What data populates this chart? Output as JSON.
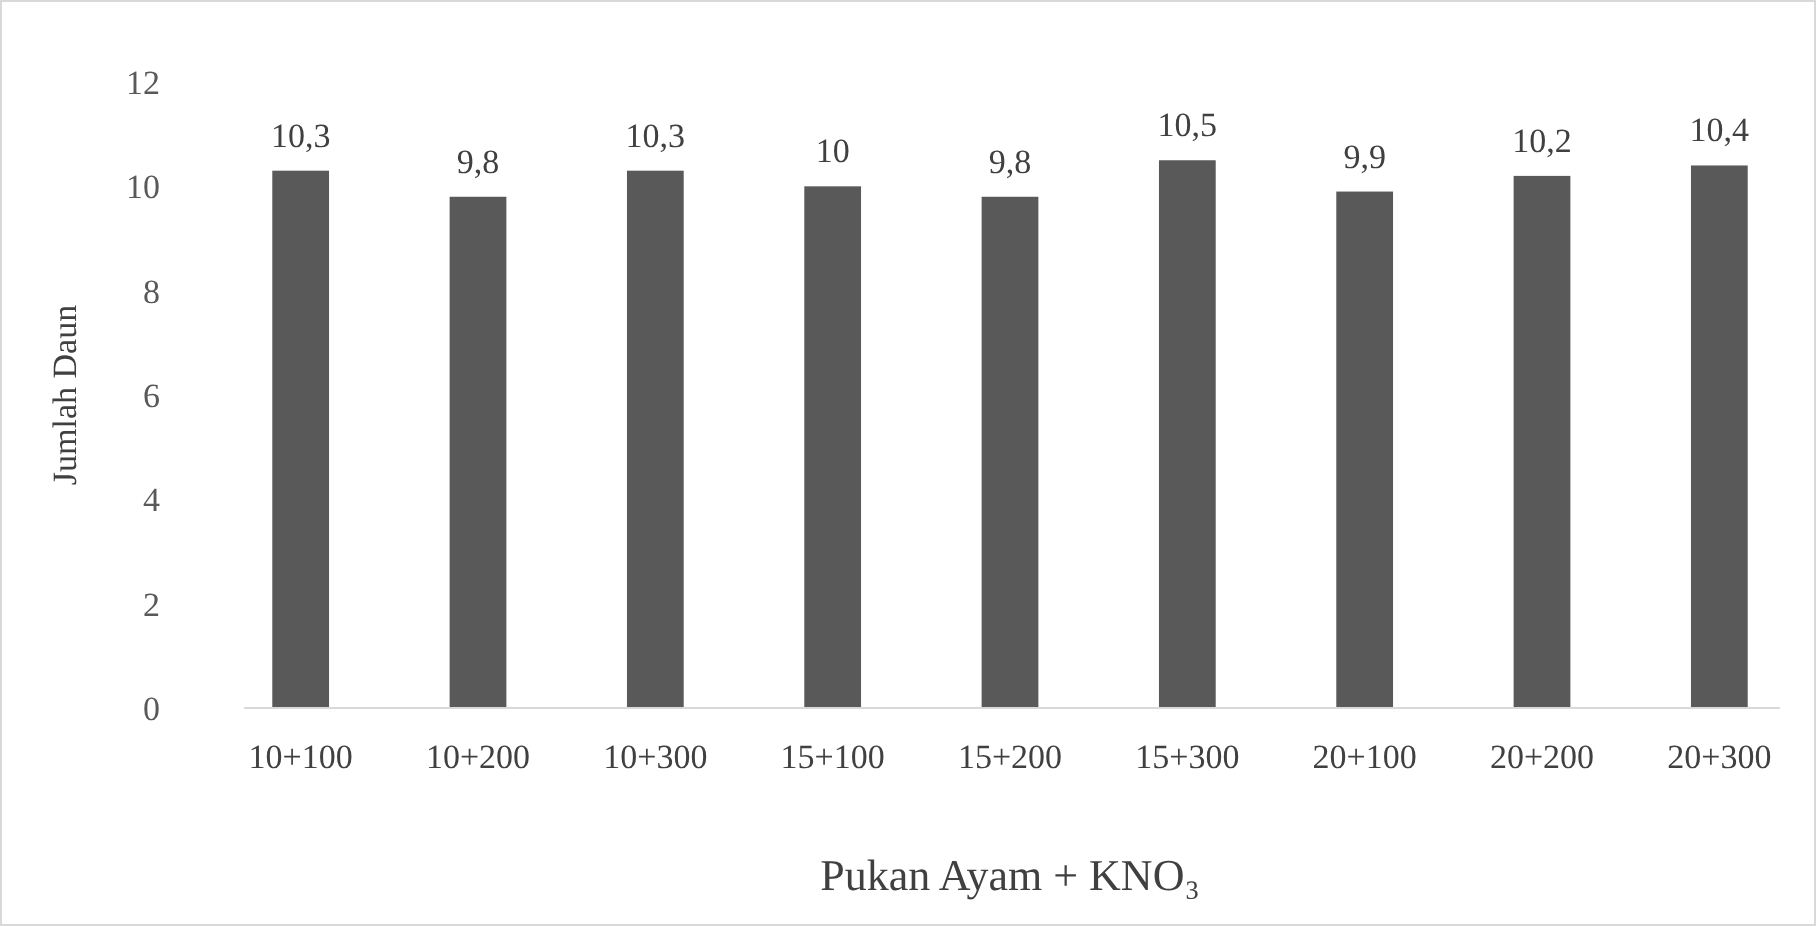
{
  "chart_data": {
    "type": "bar",
    "xlabel": "Pukan Ayam + KNO₃",
    "ylabel": "Jumlah Daun",
    "categories": [
      "10+100",
      "10+200",
      "10+300",
      "15+100",
      "15+200",
      "15+300",
      "20+100",
      "20+200",
      "20+300"
    ],
    "values": [
      10.3,
      9.8,
      10.3,
      10,
      9.8,
      10.5,
      9.9,
      10.2,
      10.4
    ],
    "value_labels": [
      "10,3",
      "9,8",
      "10,3",
      "10",
      "9,8",
      "10,5",
      "9,9",
      "10,2",
      "10,4"
    ],
    "color": "#595959",
    "ylim": [
      0,
      12
    ],
    "yticks": [
      0,
      2,
      4,
      6,
      8,
      10,
      12
    ],
    "grid": false
  }
}
